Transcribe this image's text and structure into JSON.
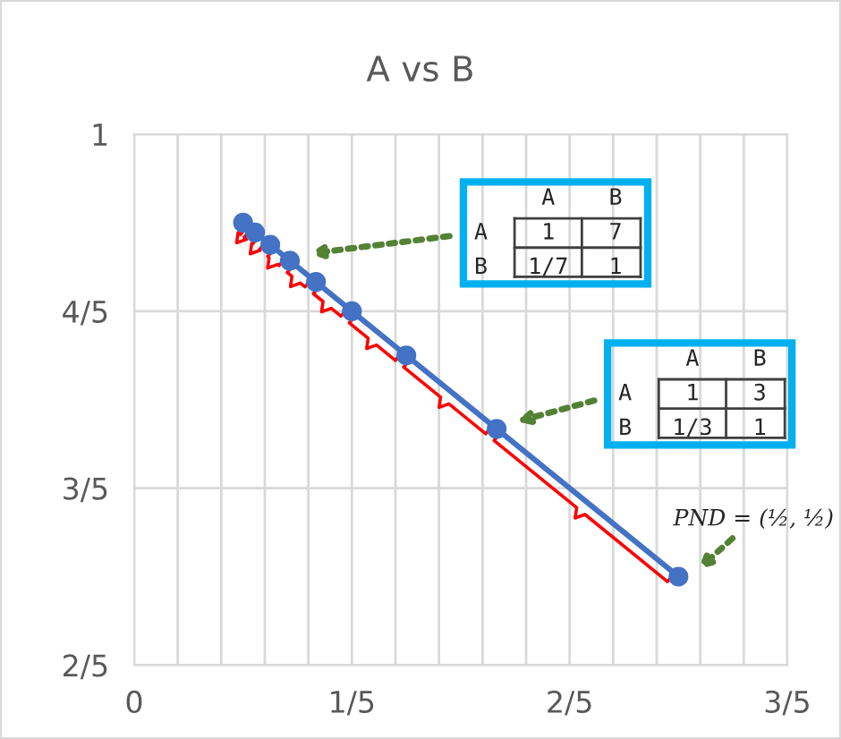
{
  "chart_data": {
    "type": "line",
    "title": "A vs B",
    "x": [
      0.1,
      0.111,
      0.125,
      0.143,
      0.167,
      0.2,
      0.25,
      0.333,
      0.5
    ],
    "series": [
      {
        "color": "#4472c4",
        "values": [
          0.9,
          0.889,
          0.875,
          0.857,
          0.833,
          0.8,
          0.75,
          0.667,
          0.5
        ]
      }
    ],
    "marker": "circle",
    "line_style": "solid",
    "grid": true,
    "xlim": [
      0,
      0.6
    ],
    "ylim": [
      0.4,
      1
    ],
    "xticks": [
      {
        "value": 0,
        "label": "0"
      },
      {
        "value": 0.04,
        "label": null
      },
      {
        "value": 0.08,
        "label": null
      },
      {
        "value": 0.12,
        "label": null
      },
      {
        "value": 0.16,
        "label": null
      },
      {
        "value": 0.2,
        "label": "1/5"
      },
      {
        "value": 0.24,
        "label": null
      },
      {
        "value": 0.28,
        "label": null
      },
      {
        "value": 0.32,
        "label": null
      },
      {
        "value": 0.36,
        "label": null
      },
      {
        "value": 0.4,
        "label": "2/5"
      },
      {
        "value": 0.44,
        "label": null
      },
      {
        "value": 0.48,
        "label": null
      },
      {
        "value": 0.52,
        "label": null
      },
      {
        "value": 0.56,
        "label": null
      },
      {
        "value": 0.6,
        "label": "3/5"
      }
    ],
    "yticks": [
      {
        "value": 0.4,
        "label": "2/5"
      },
      {
        "value": 0.6,
        "label": "3/5"
      },
      {
        "value": 0.8,
        "label": "4/5"
      },
      {
        "value": 1,
        "label": "1"
      }
    ],
    "annotations": [
      "     A    B\nA    1    7\nB   1/7   1",
      "     A    B\nA    1    3\nB   1/3   1",
      "PND = (½, ½)"
    ]
  }
}
